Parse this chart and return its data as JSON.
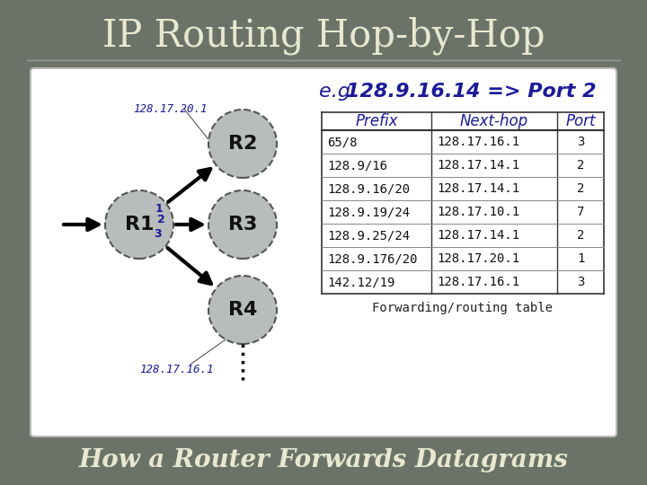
{
  "title": "IP Routing Hop-by-Hop",
  "subtitle": "How a Router Forwards Datagrams",
  "bg_outer": "#6b7369",
  "title_color": "#e8e8d0",
  "subtitle_color": "#e8e8d0",
  "eg_text_prefix": "e.g. ",
  "eg_text_bold": "128.9.16.14 => Port 2",
  "eg_color": "#1a1a99",
  "node_fill": "#b8bcbc",
  "node_edge_color": "#555555",
  "arrow_color": "#111111",
  "label_color": "#1a1a99",
  "table_headers": [
    "Prefix",
    "Next-hop",
    "Port"
  ],
  "table_rows": [
    [
      "65/8",
      "128.17.16.1",
      "3"
    ],
    [
      "128.9/16",
      "128.17.14.1",
      "2"
    ],
    [
      "128.9.16/20",
      "128.17.14.1",
      "2"
    ],
    [
      "128.9.19/24",
      "128.17.10.1",
      "7"
    ],
    [
      "128.9.25/24",
      "128.17.14.1",
      "2"
    ],
    [
      "128.9.176/20",
      "128.17.20.1",
      "1"
    ],
    [
      "142.12/19",
      "128.17.16.1",
      "3"
    ]
  ],
  "table_caption": "Forwarding/routing table",
  "label_top": "128.17.20.1",
  "label_bot": "128.17.16.1"
}
